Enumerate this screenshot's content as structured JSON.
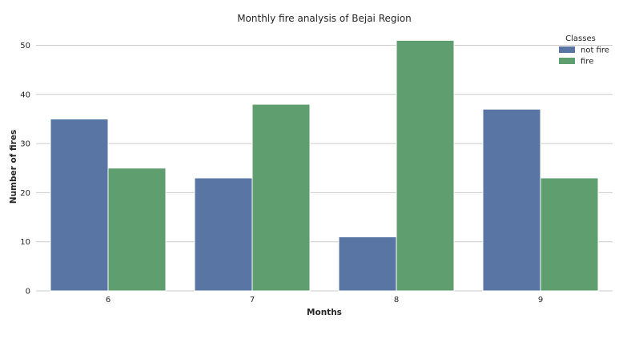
{
  "chart_data": {
    "type": "bar",
    "title": "Monthly fire analysis of Bejai Region",
    "xlabel": "Months",
    "ylabel": "Number of fires",
    "categories": [
      "6",
      "7",
      "8",
      "9"
    ],
    "series": [
      {
        "name": "not fire",
        "values": [
          35,
          23,
          11,
          37
        ],
        "color": "#5975a4"
      },
      {
        "name": "fire",
        "values": [
          25,
          38,
          51,
          23
        ],
        "color": "#5f9e6e"
      }
    ],
    "ylim": [
      0,
      53
    ],
    "yticks": [
      "0",
      "10",
      "20",
      "30",
      "40",
      "50"
    ],
    "grid": "horizontal",
    "legend": {
      "title": "Classes",
      "placement": "top-right"
    }
  }
}
